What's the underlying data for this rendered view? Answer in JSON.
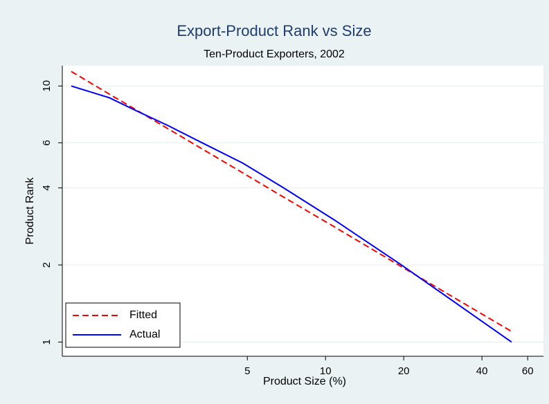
{
  "chart_data": {
    "type": "line",
    "title": "Export-Product Rank vs Size",
    "subtitle": "Ten-Product Exporters, 2002",
    "x_label": "Product Size (%)",
    "y_label": "Product Rank",
    "x": [
      1.05,
      1.47,
      1.87,
      2.48,
      3.35,
      4.8,
      6.9,
      10.8,
      19.6,
      52
    ],
    "series": [
      {
        "name": "Fitted",
        "color": "#ff0000",
        "dash": true,
        "values": [
          11.4,
          9.3,
          8.06,
          6.8,
          5.68,
          4.58,
          3.68,
          2.82,
          1.97,
          1.1
        ]
      },
      {
        "name": "Actual",
        "color": "#0000ff",
        "dash": false,
        "values": [
          10,
          9,
          8,
          7,
          6,
          5,
          4,
          3,
          2,
          1
        ]
      }
    ],
    "xlim": [
      0.97,
      69
    ],
    "ylim": [
      0.88,
      12
    ],
    "xticks": [
      5,
      10,
      20,
      40,
      60
    ],
    "yticks": [
      1,
      2,
      4,
      6,
      10
    ],
    "xlog": true,
    "ylog": true,
    "grid": true,
    "legend": "lower left"
  }
}
